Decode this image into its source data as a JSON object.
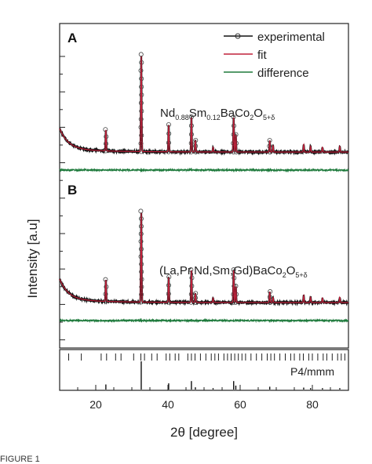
{
  "chart_data": [
    {
      "panel": "A",
      "type": "line",
      "compound": {
        "prefix": "Nd",
        "sub1": "0.88",
        "mid": "Sm",
        "sub2": "0.12",
        "suffix": "BaCo",
        "sub3": "2",
        "end": "O",
        "sub4": "5+δ"
      },
      "legend": {
        "placement": "top-right",
        "entries": [
          {
            "name": "experimental",
            "color": "#111111"
          },
          {
            "name": "fit",
            "color": "#c0203a"
          },
          {
            "name": "difference",
            "color": "#1e7a3c"
          }
        ]
      },
      "peaks": [
        {
          "x": 22.8,
          "h": 0.22
        },
        {
          "x": 32.6,
          "h": 1.0
        },
        {
          "x": 40.2,
          "h": 0.28
        },
        {
          "x": 46.5,
          "h": 0.36
        },
        {
          "x": 47.6,
          "h": 0.12
        },
        {
          "x": 52.5,
          "h": 0.05
        },
        {
          "x": 58.2,
          "h": 0.36
        },
        {
          "x": 58.8,
          "h": 0.18
        },
        {
          "x": 68.2,
          "h": 0.12
        },
        {
          "x": 69.1,
          "h": 0.07
        },
        {
          "x": 77.6,
          "h": 0.08
        },
        {
          "x": 79.5,
          "h": 0.06
        },
        {
          "x": 82.8,
          "h": 0.05
        },
        {
          "x": 87.6,
          "h": 0.06
        }
      ]
    },
    {
      "panel": "B",
      "type": "line",
      "compound": {
        "prefix": "(La,Pr,Nd,Sm,Gd)BaCo",
        "sub1": "2",
        "mid": "O",
        "sub2": "5+δ"
      },
      "peaks": [
        {
          "x": 22.8,
          "h": 0.24
        },
        {
          "x": 32.6,
          "h": 1.0
        },
        {
          "x": 40.2,
          "h": 0.28
        },
        {
          "x": 46.5,
          "h": 0.36
        },
        {
          "x": 47.6,
          "h": 0.1
        },
        {
          "x": 52.5,
          "h": 0.05
        },
        {
          "x": 58.2,
          "h": 0.36
        },
        {
          "x": 58.8,
          "h": 0.18
        },
        {
          "x": 68.2,
          "h": 0.12
        },
        {
          "x": 69.1,
          "h": 0.06
        },
        {
          "x": 77.6,
          "h": 0.08
        },
        {
          "x": 79.5,
          "h": 0.06
        },
        {
          "x": 82.8,
          "h": 0.05
        },
        {
          "x": 87.6,
          "h": 0.06
        }
      ]
    }
  ],
  "reference": {
    "label": "P4/mmm",
    "tick_positions": [
      12.5,
      16,
      21.5,
      23,
      25.5,
      27,
      30.5,
      32.5,
      33.5,
      35.5,
      37,
      39.5,
      40.5,
      42,
      43,
      45.5,
      46.5,
      47.5,
      49,
      50.5,
      52,
      53,
      54,
      55.5,
      56.5,
      57.5,
      58.5,
      59.5,
      60.5,
      61.5,
      63,
      64.5,
      66,
      67.5,
      68.5,
      69.5,
      71,
      72.5,
      74,
      75,
      76.5,
      77.5,
      79,
      80,
      81.5,
      83,
      84,
      85.5,
      87,
      88,
      89
    ],
    "bars": [
      {
        "x": 22.8,
        "h": 0.18
      },
      {
        "x": 32.6,
        "h": 1.0
      },
      {
        "x": 40.2,
        "h": 0.22
      },
      {
        "x": 46.5,
        "h": 0.3
      },
      {
        "x": 47.6,
        "h": 0.08
      },
      {
        "x": 52.5,
        "h": 0.05
      },
      {
        "x": 58.2,
        "h": 0.3
      },
      {
        "x": 58.8,
        "h": 0.14
      },
      {
        "x": 68.2,
        "h": 0.1
      },
      {
        "x": 77.6,
        "h": 0.07
      },
      {
        "x": 79.5,
        "h": 0.05
      },
      {
        "x": 82.8,
        "h": 0.05
      },
      {
        "x": 87.6,
        "h": 0.05
      }
    ]
  },
  "axes": {
    "xlabel": "2θ [degree]",
    "ylabel": "Intensity [a.u]",
    "xlim": [
      10,
      90
    ],
    "xticks": [
      "20",
      "40",
      "60",
      "80"
    ],
    "xtick_values": [
      20,
      40,
      60,
      80
    ]
  },
  "caption_fragment": "FIGURE 1"
}
